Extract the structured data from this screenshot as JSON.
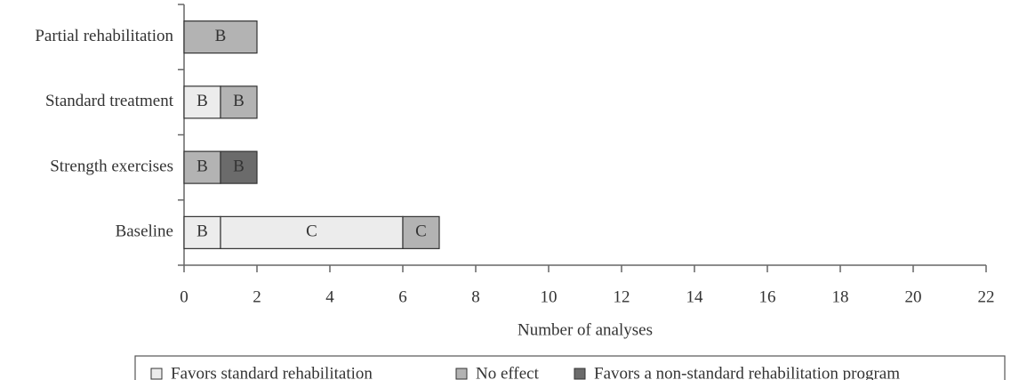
{
  "chart_data": {
    "type": "stacked-bar-horizontal",
    "x_label": "Number of analyses",
    "categories": [
      "Partial rehabilitation",
      "Standard treatment",
      "Strength exercises",
      "Baseline"
    ],
    "segments": [
      [
        {
          "value": 2,
          "label": "B",
          "color": "#b3b3b3"
        }
      ],
      [
        {
          "value": 1,
          "label": "B",
          "color": "#ececec"
        },
        {
          "value": 1,
          "label": "B",
          "color": "#b3b3b3"
        }
      ],
      [
        {
          "value": 1,
          "label": "B",
          "color": "#b3b3b3"
        },
        {
          "value": 1,
          "label": "B",
          "color": "#6b6b6b"
        }
      ],
      [
        {
          "value": 1,
          "label": "B",
          "color": "#ececec"
        },
        {
          "value": 5,
          "label": "C",
          "color": "#ececec"
        },
        {
          "value": 1,
          "label": "C",
          "color": "#b3b3b3"
        }
      ]
    ],
    "legend": [
      {
        "name": "Favors standard rehabilitation",
        "color": "#ececec"
      },
      {
        "name": "No effect",
        "color": "#b3b3b3"
      },
      {
        "name": "Favors a non-standard rehabilitation program",
        "color": "#6b6b6b"
      }
    ],
    "xlim": [
      0,
      22
    ],
    "xticks": [
      0,
      2,
      4,
      6,
      8,
      10,
      12,
      14,
      16,
      18,
      20,
      22
    ]
  }
}
